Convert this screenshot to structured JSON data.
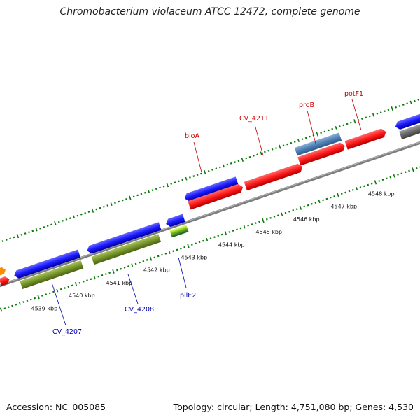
{
  "title": "Chromobacterium violaceum ATCC 12472, complete genome",
  "footer": {
    "accession": "Accession: NC_005085",
    "stats": "Topology: circular; Length: 4,751,080 bp; Genes: 4,530"
  },
  "colors": {
    "backbone": "#808080",
    "ticks": "#0a7a0a",
    "red": "#e41010",
    "blue": "#1010e0",
    "olive": "#6e8c23",
    "steel": "#4f81b5",
    "gray": "#6a6a6a",
    "label_red": "#cc0000",
    "label_blue": "#0000aa"
  },
  "scale_labels": [
    "4539 kbp",
    "4540 kbp",
    "4541 kbp",
    "4542 kbp",
    "4543 kbp",
    "4544 kbp",
    "4545 kbp",
    "4546 kbp",
    "4547 kbp",
    "4548 kbp"
  ],
  "gene_labels": [
    {
      "name": "CV_4207",
      "color": "blue"
    },
    {
      "name": "CV_4208",
      "color": "blue"
    },
    {
      "name": "pilE2",
      "color": "blue"
    },
    {
      "name": "bioA",
      "color": "red"
    },
    {
      "name": "CV_4211",
      "color": "red"
    },
    {
      "name": "proB",
      "color": "red"
    },
    {
      "name": "potF1",
      "color": "red"
    }
  ]
}
